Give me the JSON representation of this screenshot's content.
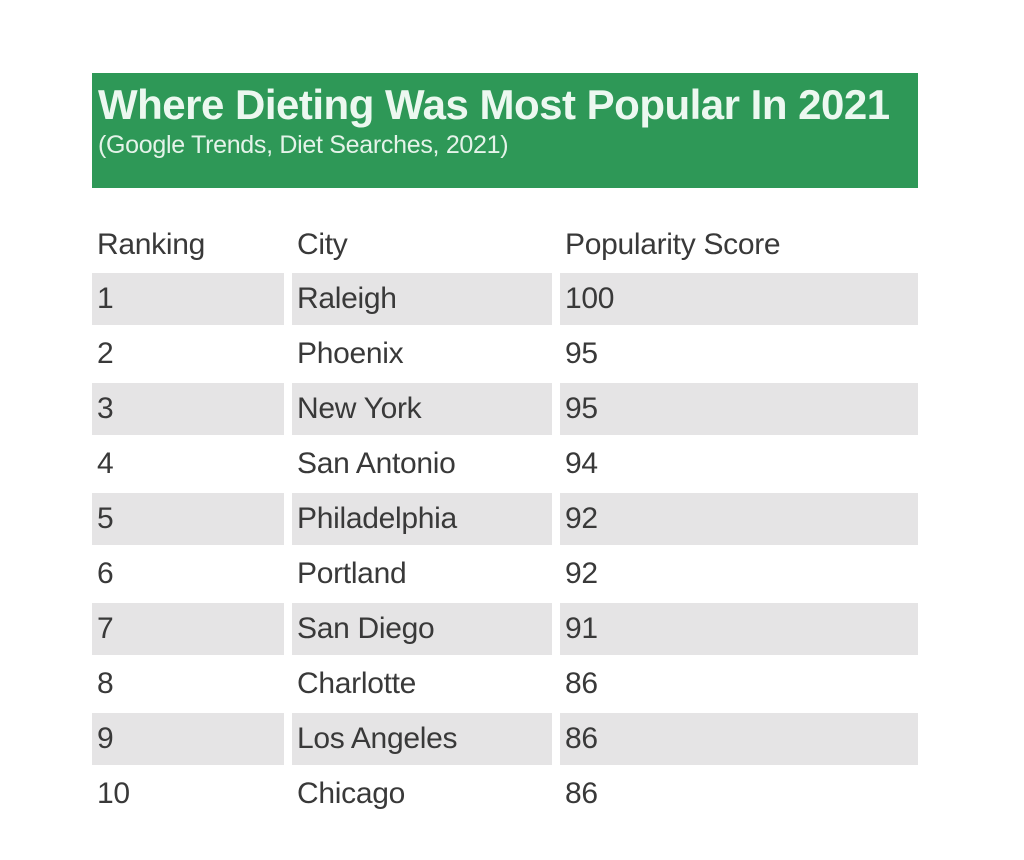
{
  "banner": {
    "title": "Where Dieting Was Most Popular In 2021",
    "subtitle": "(Google Trends, Diet Searches, 2021)",
    "background_color": "#2e9857",
    "text_color": "#ecf8f0"
  },
  "table": {
    "columns": [
      "Ranking",
      "City",
      "Popularity Score"
    ],
    "rows": [
      {
        "ranking": "1",
        "city": "Raleigh",
        "score": "100"
      },
      {
        "ranking": "2",
        "city": "Phoenix",
        "score": "95"
      },
      {
        "ranking": "3",
        "city": "New York",
        "score": "95"
      },
      {
        "ranking": "4",
        "city": "San Antonio",
        "score": "94"
      },
      {
        "ranking": "5",
        "city": "Philadelphia",
        "score": "92"
      },
      {
        "ranking": "6",
        "city": "Portland",
        "score": "92"
      },
      {
        "ranking": "7",
        "city": "San Diego",
        "score": "91"
      },
      {
        "ranking": "8",
        "city": "Charlotte",
        "score": "86"
      },
      {
        "ranking": "9",
        "city": "Los Angeles",
        "score": "86"
      },
      {
        "ranking": "10",
        "city": "Chicago",
        "score": "86"
      }
    ],
    "stripe_color": "#e5e4e5",
    "text_color": "#393939"
  },
  "chart_data": {
    "type": "table",
    "title": "Where Dieting Was Most Popular In 2021",
    "subtitle": "(Google Trends, Diet Searches, 2021)",
    "columns": [
      "Ranking",
      "City",
      "Popularity Score"
    ],
    "rows": [
      [
        1,
        "Raleigh",
        100
      ],
      [
        2,
        "Phoenix",
        95
      ],
      [
        3,
        "New York",
        95
      ],
      [
        4,
        "San Antonio",
        94
      ],
      [
        5,
        "Philadelphia",
        92
      ],
      [
        6,
        "Portland",
        92
      ],
      [
        7,
        "San Diego",
        91
      ],
      [
        8,
        "Charlotte",
        86
      ],
      [
        9,
        "Los Angeles",
        86
      ],
      [
        10,
        "Chicago",
        86
      ]
    ],
    "layout": {
      "striped_rows": "odd",
      "header_background": "none",
      "value_range": [
        86,
        100
      ]
    }
  }
}
